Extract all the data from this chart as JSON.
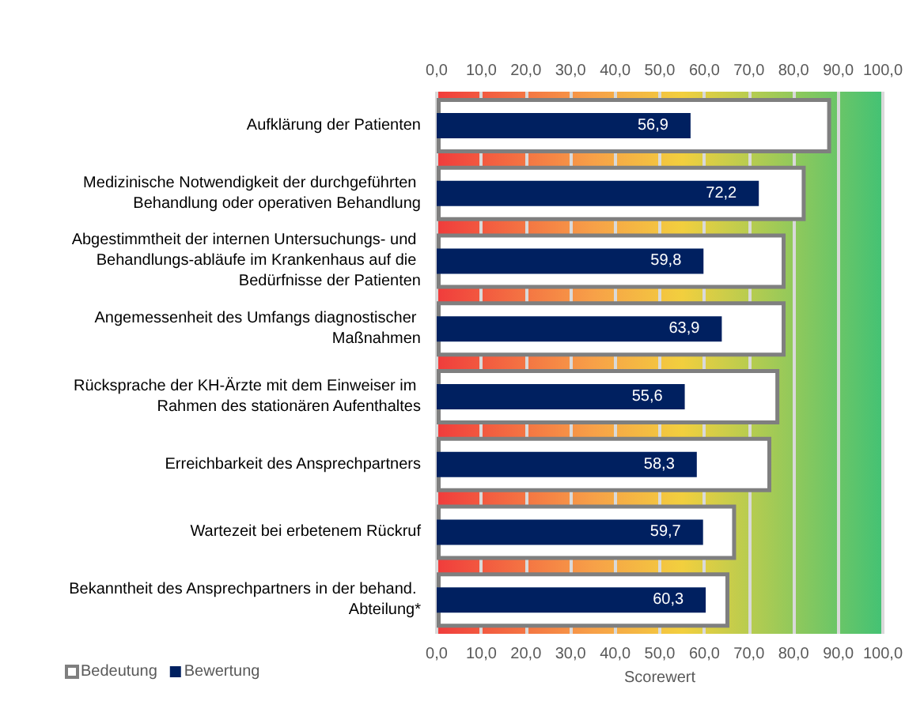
{
  "chart_data": {
    "type": "bar",
    "orientation": "horizontal",
    "xlabel": "Scorewert",
    "categories": [
      "Aufklärung der Patienten",
      "Medizinische Notwendigkeit der durchgeführten Behandlung oder operativen Behandlung",
      "Abgestimmtheit der internen Untersuchungs- und Behandlungs-abläufe im Krankenhaus auf die Bedürfnisse der Patienten",
      "Angemessenheit des Umfangs diagnostischer Maßnahmen",
      "Rücksprache der KH-Ärzte mit dem Einweiser im Rahmen des stationären Aufenthaltes",
      "Erreichbarkeit des Ansprechpartners",
      "Wartezeit bei erbetenem Rückruf",
      "Bekanntheit des Ansprechpartners in der behand. Abteilung*"
    ],
    "series": [
      {
        "name": "Bedeutung",
        "color": "#ffffff",
        "values": [
          88.4,
          82.7,
          78.2,
          78.2,
          76.8,
          75.0,
          67.1,
          65.6
        ]
      },
      {
        "name": "Bewertung",
        "color": "#002060",
        "values": [
          56.9,
          72.2,
          59.8,
          63.9,
          55.6,
          58.3,
          59.7,
          60.3
        ],
        "value_labels": [
          "56,9",
          "72,2",
          "59,8",
          "63,9",
          "55,6",
          "58,3",
          "59,7",
          "60,3"
        ]
      }
    ],
    "xlim": [
      0,
      100
    ],
    "xticks": [
      {
        "value": 0,
        "label": "0,0"
      },
      {
        "value": 10,
        "label": "10,0"
      },
      {
        "value": 20,
        "label": "20,0"
      },
      {
        "value": 30,
        "label": "30,0"
      },
      {
        "value": 40,
        "label": "40,0"
      },
      {
        "value": 50,
        "label": "50,0"
      },
      {
        "value": 60,
        "label": "60,0"
      },
      {
        "value": 70,
        "label": "70,0"
      },
      {
        "value": 80,
        "label": "80,0"
      },
      {
        "value": 90,
        "label": "90,0"
      },
      {
        "value": 100,
        "label": "100,0"
      }
    ],
    "x2lim": [
      0,
      100
    ],
    "x2ticks": [
      {
        "value": 0,
        "label": "0,0"
      },
      {
        "value": 10,
        "label": "10,0"
      },
      {
        "value": 20,
        "label": "20,0"
      },
      {
        "value": 30,
        "label": "30,0"
      },
      {
        "value": 40,
        "label": "40,0"
      },
      {
        "value": 50,
        "label": "50,0"
      },
      {
        "value": 60,
        "label": "60,0"
      },
      {
        "value": 70,
        "label": "70,0"
      },
      {
        "value": 80,
        "label": "80,0"
      },
      {
        "value": 90,
        "label": "90,0"
      },
      {
        "value": 100,
        "label": "100,0"
      }
    ],
    "grid": "x",
    "legend": "bottom left"
  }
}
